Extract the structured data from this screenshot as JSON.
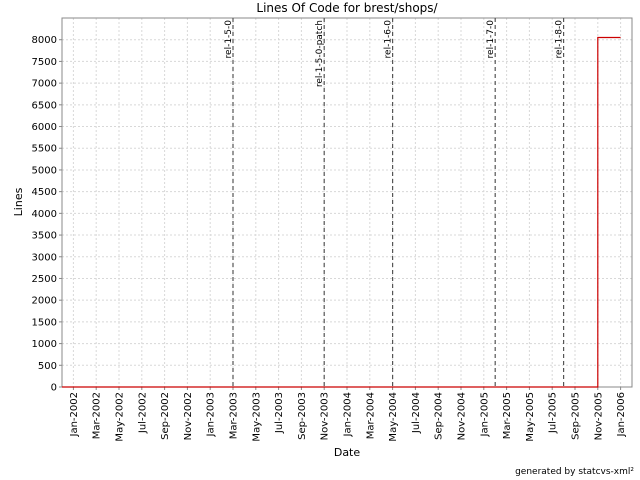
{
  "chart_data": {
    "type": "line",
    "title": "Lines Of Code for brest/shops/",
    "x_label": "Date",
    "y_label": "Lines",
    "footer": "generated by statcvs-xml²",
    "x": [
      "2001-12",
      "2005-11",
      "2005-11",
      "2005-11",
      "2006-01"
    ],
    "series": [
      {
        "name": "Lines",
        "color": "#cc0000",
        "values": [
          0,
          0,
          4100,
          8050,
          8050
        ]
      }
    ],
    "xlim": [
      "2001-12",
      "2006-02"
    ],
    "xticks": [
      {
        "value": "2002-01",
        "label": "Jan-2002"
      },
      {
        "value": "2002-03",
        "label": "Mar-2002"
      },
      {
        "value": "2002-05",
        "label": "May-2002"
      },
      {
        "value": "2002-07",
        "label": "Jul-2002"
      },
      {
        "value": "2002-09",
        "label": "Sep-2002"
      },
      {
        "value": "2002-11",
        "label": "Nov-2002"
      },
      {
        "value": "2003-01",
        "label": "Jan-2003"
      },
      {
        "value": "2003-03",
        "label": "Mar-2003"
      },
      {
        "value": "2003-05",
        "label": "May-2003"
      },
      {
        "value": "2003-07",
        "label": "Jul-2003"
      },
      {
        "value": "2003-09",
        "label": "Sep-2003"
      },
      {
        "value": "2003-11",
        "label": "Nov-2003"
      },
      {
        "value": "2004-01",
        "label": "Jan-2004"
      },
      {
        "value": "2004-03",
        "label": "Mar-2004"
      },
      {
        "value": "2004-05",
        "label": "May-2004"
      },
      {
        "value": "2004-07",
        "label": "Jul-2004"
      },
      {
        "value": "2004-09",
        "label": "Sep-2004"
      },
      {
        "value": "2004-11",
        "label": "Nov-2004"
      },
      {
        "value": "2005-01",
        "label": "Jan-2005"
      },
      {
        "value": "2005-03",
        "label": "Mar-2005"
      },
      {
        "value": "2005-05",
        "label": "May-2005"
      },
      {
        "value": "2005-07",
        "label": "Jul-2005"
      },
      {
        "value": "2005-09",
        "label": "Sep-2005"
      },
      {
        "value": "2005-11",
        "label": "Nov-2005"
      },
      {
        "value": "2006-01",
        "label": "Jan-2006"
      }
    ],
    "ylim": [
      0,
      8500
    ],
    "yticks": [
      0,
      500,
      1000,
      1500,
      2000,
      2500,
      3000,
      3500,
      4000,
      4500,
      5000,
      5500,
      6000,
      6500,
      7000,
      7500,
      8000
    ],
    "grid": true,
    "markers": [
      {
        "label": "rel-1-5-0",
        "x": "2003-03"
      },
      {
        "label": "rel-1-5-0-patch",
        "x": "2003-11"
      },
      {
        "label": "rel-1-6-0",
        "x": "2004-05"
      },
      {
        "label": "rel-1-7-0",
        "x": "2005-02"
      },
      {
        "label": "rel-1-8-0",
        "x": "2005-08"
      }
    ]
  }
}
